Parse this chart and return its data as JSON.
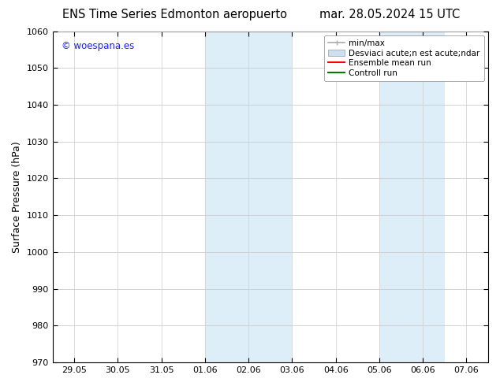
{
  "title_left": "ENS Time Series Edmonton aeropuerto",
  "title_right": "mar. 28.05.2024 15 UTC",
  "ylabel": "Surface Pressure (hPa)",
  "ylim": [
    970,
    1060
  ],
  "yticks": [
    970,
    980,
    990,
    1000,
    1010,
    1020,
    1030,
    1040,
    1050,
    1060
  ],
  "xtick_labels": [
    "29.05",
    "30.05",
    "31.05",
    "01.06",
    "02.06",
    "03.06",
    "04.06",
    "05.06",
    "06.06",
    "07.06"
  ],
  "xtick_positions": [
    0,
    1,
    2,
    3,
    4,
    5,
    6,
    7,
    8,
    9
  ],
  "shaded_regions": [
    {
      "x_start": 3.0,
      "x_end": 3.5,
      "x_start2": 3.5,
      "x_end2": 4.5
    },
    {
      "x_start": 7.0,
      "x_end": 7.5,
      "x_start2": 7.5,
      "x_end2": 8.5
    }
  ],
  "shade_color": "#ddeef8",
  "watermark_text": "© woespana.es",
  "watermark_color": "#1a1aff",
  "legend_line1_label": "min/max",
  "legend_line1_color": "#aaaaaa",
  "legend_line2_label": "Desviaci acute;n est acute;ndar",
  "legend_line2_color": "#cce0f0",
  "legend_line3_label": "Ensemble mean run",
  "legend_line3_color": "red",
  "legend_line4_label": "Controll run",
  "legend_line4_color": "green",
  "background_color": "#ffffff",
  "grid_color": "#cccccc",
  "title_fontsize": 10.5,
  "label_fontsize": 9,
  "tick_fontsize": 8,
  "watermark_fontsize": 8.5,
  "legend_fontsize": 7.5
}
